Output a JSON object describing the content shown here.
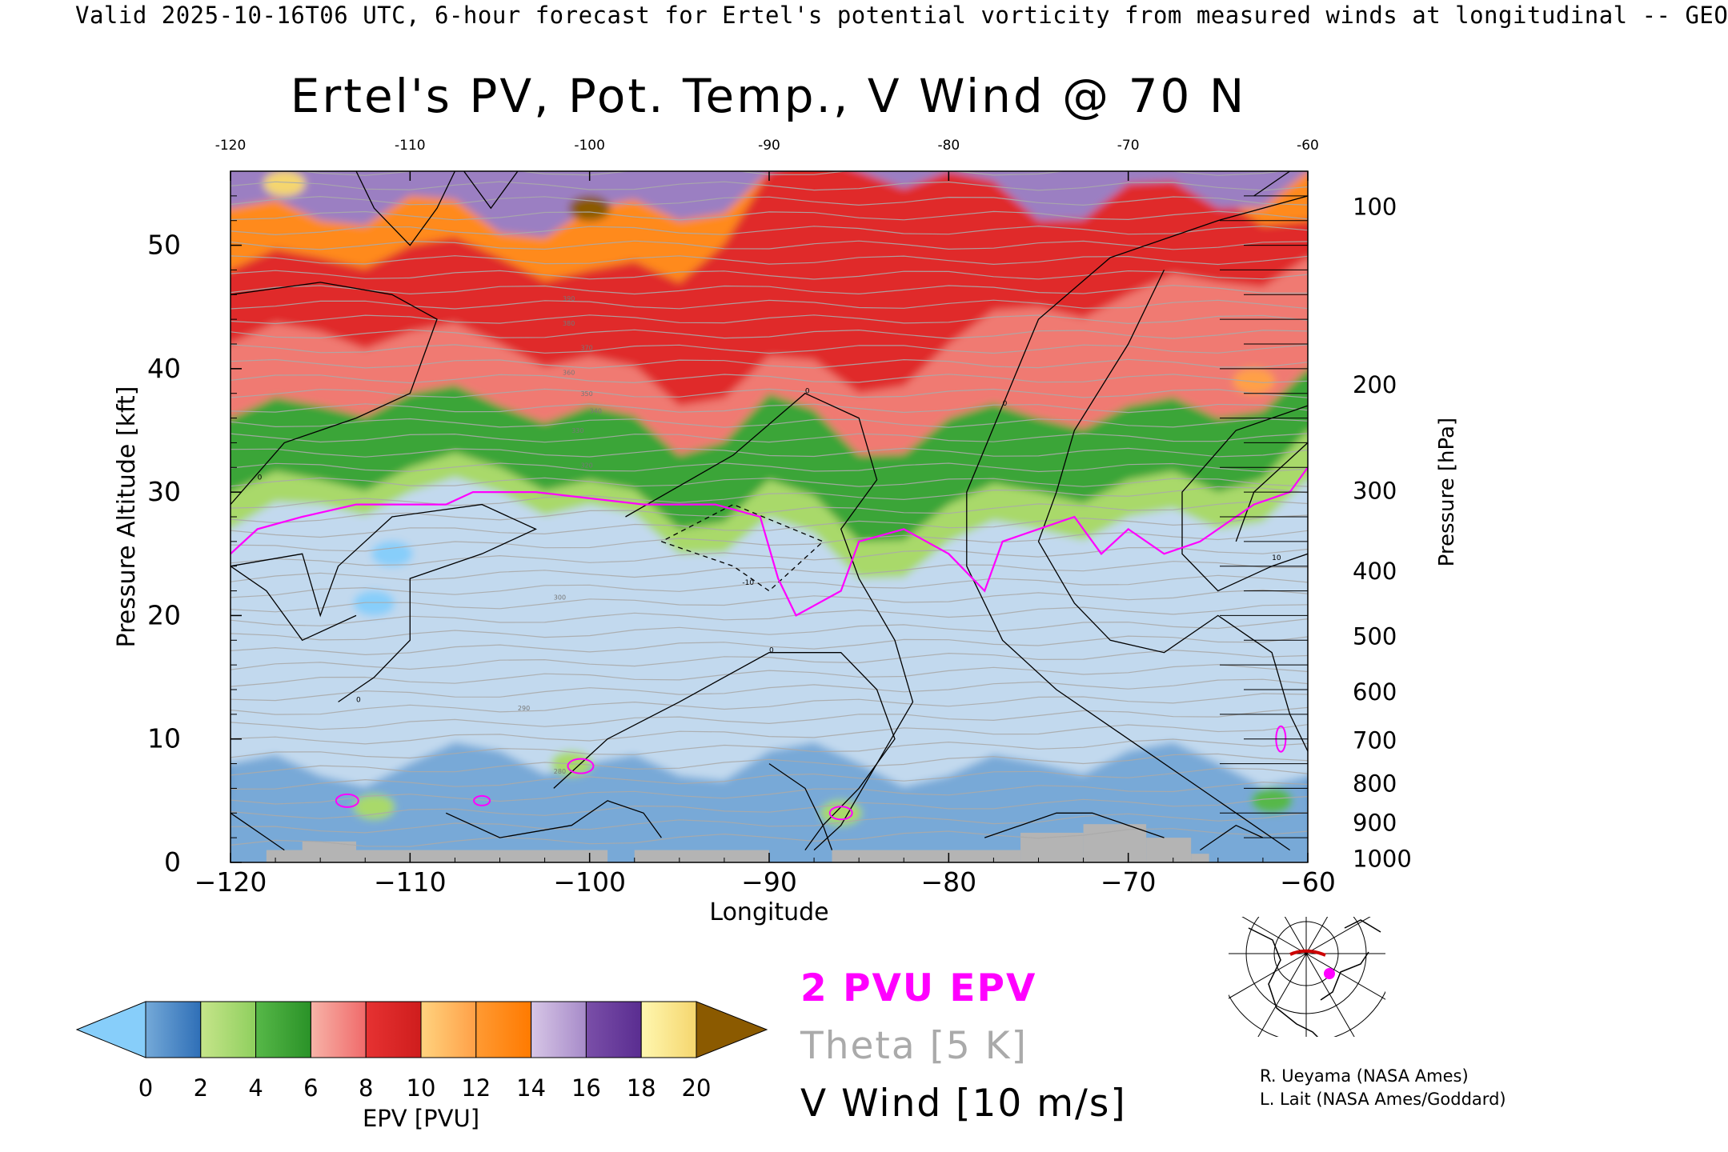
{
  "header": {
    "valid_line": "Valid 2025-10-16T06 UTC, 6-hour forecast for Ertel's potential vorticity from measured winds at longitudinal -- GEO"
  },
  "chart_data": {
    "type": "heatmap",
    "title": "Ertel's PV, Pot. Temp., V Wind @ 70 N",
    "xlabel": "Longitude",
    "ylabel_left": "Pressure Altitude [kft]",
    "ylabel_right": "Pressure [hPa]",
    "xlim": [
      -120,
      -60
    ],
    "ylim": [
      0,
      56
    ],
    "x_ticks": [
      -120,
      -110,
      -100,
      -90,
      -80,
      -70,
      -60
    ],
    "x_tick_labels_bottom": [
      "−120",
      "−110",
      "−100",
      "−90",
      "−80",
      "−70",
      "−60"
    ],
    "x_tick_labels_top": [
      "-120",
      "-110",
      "-100",
      "-90",
      "-80",
      "-70",
      "-60"
    ],
    "y_ticks_left": [
      0,
      10,
      20,
      30,
      40,
      50
    ],
    "y_tick_labels_left": [
      "0",
      "10",
      "20",
      "30",
      "40",
      "50"
    ],
    "pressure_ticks": [
      {
        "label": "100",
        "kft": 53.1
      },
      {
        "label": "200",
        "kft": 38.7
      },
      {
        "label": "300",
        "kft": 30.1
      },
      {
        "label": "400",
        "kft": 23.6
      },
      {
        "label": "500",
        "kft": 18.3
      },
      {
        "label": "600",
        "kft": 13.8
      },
      {
        "label": "700",
        "kft": 9.9
      },
      {
        "label": "800",
        "kft": 6.4
      },
      {
        "label": "900",
        "kft": 3.2
      },
      {
        "label": "1000",
        "kft": 0.3
      }
    ],
    "colorbar": {
      "label": "EPV [PVU]",
      "tick_labels": [
        "0",
        "2",
        "4",
        "6",
        "8",
        "10",
        "12",
        "14",
        "16",
        "18",
        "20"
      ],
      "under_color": "#87cefa",
      "over_color": "#8b5a00",
      "bins": [
        {
          "from": 0,
          "to": 2,
          "colors": [
            "#74a9d8",
            "#2f6fb7"
          ]
        },
        {
          "from": 2,
          "to": 4,
          "colors": [
            "#c6e58a",
            "#8fcf5e"
          ]
        },
        {
          "from": 4,
          "to": 6,
          "colors": [
            "#57b848",
            "#2a9228"
          ]
        },
        {
          "from": 6,
          "to": 8,
          "colors": [
            "#f7b3a8",
            "#f06a6a"
          ]
        },
        {
          "from": 8,
          "to": 10,
          "colors": [
            "#e63232",
            "#cf1d1d"
          ]
        },
        {
          "from": 10,
          "to": 12,
          "colors": [
            "#ffd37f",
            "#ffa047"
          ]
        },
        {
          "from": 12,
          "to": 14,
          "colors": [
            "#ff9a33",
            "#ff7a00"
          ]
        },
        {
          "from": 14,
          "to": 16,
          "colors": [
            "#d7c6e6",
            "#a78bc9"
          ]
        },
        {
          "from": 16,
          "to": 18,
          "colors": [
            "#7a4fa8",
            "#5a2d91"
          ]
        },
        {
          "from": 18,
          "to": 20,
          "colors": [
            "#fff7b0",
            "#f5d66e"
          ]
        }
      ]
    },
    "epv_layers": [
      {
        "epv": 0.3,
        "color": "#c2d9ee",
        "top_kft": [
          8,
          7,
          8,
          9,
          8,
          7,
          9,
          8,
          7,
          8,
          9,
          8,
          7
        ]
      },
      {
        "epv": 2.0,
        "color": "#a9d96a",
        "top_kft": [
          27,
          29,
          30,
          30,
          29,
          25,
          28,
          23,
          26,
          27,
          28,
          27,
          31
        ]
      },
      {
        "epv": 5.0,
        "color": "#3aa537",
        "top_kft": [
          30,
          31,
          32,
          32,
          31,
          27,
          31,
          26,
          29,
          30,
          31,
          30,
          35
        ]
      },
      {
        "epv": 7.0,
        "color": "#f07a72",
        "top_kft": [
          36,
          37,
          38,
          37,
          37,
          33,
          38,
          33,
          36,
          36,
          37,
          36,
          40
        ]
      },
      {
        "epv": 9.0,
        "color": "#e02b2b",
        "top_kft": [
          42,
          43,
          43,
          42,
          41,
          37,
          41,
          38,
          42,
          45,
          46,
          47,
          49
        ]
      },
      {
        "epv": 12.0,
        "color": "#ff8a1e",
        "top_kft": [
          48,
          49,
          50,
          49,
          48,
          47,
          56,
          56,
          56,
          56,
          55,
          54,
          52
        ]
      },
      {
        "epv": 15.0,
        "color": "#9b7fc2",
        "top_kft": [
          53,
          52,
          54,
          51,
          53,
          52,
          56,
          56,
          56,
          52,
          55,
          53,
          56
        ]
      }
    ],
    "epv_max_pockets": [
      {
        "lon": -100,
        "kft": 53,
        "epv": 21,
        "color": "#8b5a00"
      },
      {
        "lon": -117,
        "kft": 55,
        "epv": 19,
        "color": "#f5d66e"
      },
      {
        "lon": -63,
        "kft": 39,
        "epv": 11,
        "color": "#ffa047"
      },
      {
        "lon": -62,
        "kft": 5,
        "epv": 4,
        "color": "#57b848"
      },
      {
        "lon": -101,
        "kft": 8,
        "epv": 3,
        "color": "#a9d96a"
      },
      {
        "lon": -112,
        "kft": 4.5,
        "epv": 3,
        "color": "#a9d96a"
      },
      {
        "lon": -86,
        "kft": 4,
        "epv": 3,
        "color": "#a9d96a"
      }
    ],
    "epv_min_pockets": [
      {
        "lon": -112,
        "kft": 21,
        "epv": -0.5,
        "color": "#87cefa"
      },
      {
        "lon": -111,
        "kft": 25,
        "epv": -0.5,
        "color": "#87cefa"
      }
    ],
    "contour_labels": {
      "theta": [
        "390",
        "380",
        "370",
        "360",
        "350",
        "340",
        "330",
        "320",
        "300",
        "290",
        "280"
      ],
      "vwind": [
        "0",
        "-10",
        "10"
      ]
    },
    "terrain": {
      "color": "#b4b4b4",
      "segments": [
        {
          "from": -118,
          "to": -99,
          "kft": 1.0
        },
        {
          "from": -116,
          "to": -113,
          "kft": 1.7
        },
        {
          "from": -97.5,
          "to": -90,
          "kft": 1.0
        },
        {
          "from": -86.5,
          "to": -76,
          "kft": 1.0
        },
        {
          "from": -76,
          "to": -72.5,
          "kft": 2.4
        },
        {
          "from": -72.5,
          "to": -69,
          "kft": 3.1
        },
        {
          "from": -69,
          "to": -66.5,
          "kft": 2.0
        },
        {
          "from": -66.5,
          "to": -65.5,
          "kft": 0.7
        }
      ]
    }
  },
  "legend": {
    "pvu_line": "2 PVU EPV",
    "pvu_color": "#ff00ff",
    "theta_line": "Theta [5 K]",
    "theta_color": "#aaaaaa",
    "vwind_line": "V Wind [10 m/s]",
    "vwind_color": "#000000"
  },
  "credits": {
    "line1": "R. Ueyama (NASA Ames)",
    "line2": "L. Lait (NASA Ames/Goddard)"
  },
  "inset_map": {
    "marker_color": "#ff00ff",
    "section_color": "#cc0000"
  }
}
